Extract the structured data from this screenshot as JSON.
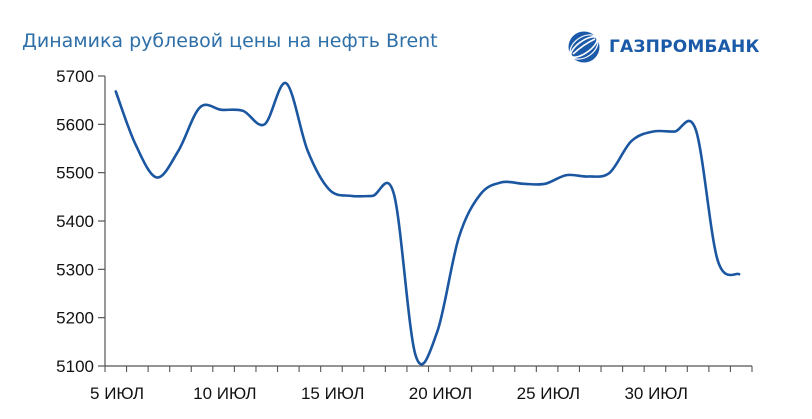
{
  "chart_data": {
    "type": "line",
    "title": "Динамика рублевой цены на нефть Brent",
    "xlabel": "",
    "ylabel": "",
    "ylim": [
      5100,
      5700
    ],
    "yticks": [
      5100,
      5200,
      5300,
      5400,
      5500,
      5600,
      5700
    ],
    "xlim": [
      5,
      35
    ],
    "xticks": [
      {
        "value": 5,
        "label": "5 ИЮЛ"
      },
      {
        "value": 10,
        "label": "10 ИЮЛ"
      },
      {
        "value": 15,
        "label": "15 ИЮЛ"
      },
      {
        "value": 20,
        "label": "20 ИЮЛ"
      },
      {
        "value": 25,
        "label": "25 ИЮЛ"
      },
      {
        "value": 30,
        "label": "30 ИЮЛ"
      }
    ],
    "grid": false,
    "colors": {
      "line": "#1b56a0",
      "axis": "#555555"
    },
    "series": [
      {
        "name": "",
        "x": [
          5.5,
          6.4,
          7.4,
          8.4,
          9.4,
          10.4,
          11.4,
          12.4,
          13.4,
          14.4,
          15.4,
          16.4,
          17.4,
          18.4,
          19.4,
          20.4,
          21.4,
          22.4,
          23.4,
          24.4,
          25.4,
          26.4,
          27.4,
          28.4,
          29.4,
          30.4,
          31.4,
          32.4,
          33.4,
          34.4
        ],
        "values": [
          5668,
          5560,
          5490,
          5545,
          5635,
          5630,
          5628,
          5600,
          5685,
          5545,
          5465,
          5452,
          5452,
          5455,
          5122,
          5170,
          5365,
          5455,
          5480,
          5477,
          5477,
          5495,
          5492,
          5500,
          5565,
          5585,
          5585,
          5588,
          5320,
          5290
        ]
      }
    ]
  },
  "logo": {
    "text": "ГАЗПРОМБАНК",
    "icon": "gazprombank-globe-icon"
  }
}
